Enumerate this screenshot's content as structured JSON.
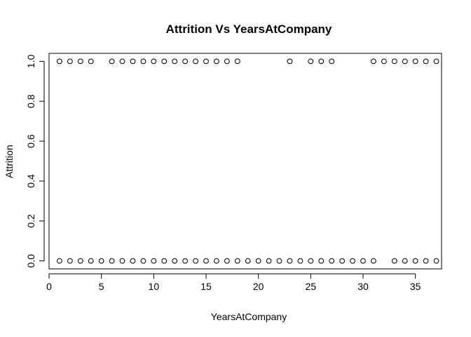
{
  "chart_data": {
    "type": "scatter",
    "title": "Attrition Vs YearsAtCompany",
    "xlabel": "YearsAtCompany",
    "ylabel": "Attrition",
    "xlim": [
      0,
      37.5
    ],
    "ylim": [
      -0.04,
      1.04
    ],
    "x_ticks": [
      0,
      5,
      10,
      15,
      20,
      25,
      30,
      35
    ],
    "y_ticks": [
      0.0,
      0.2,
      0.4,
      0.6,
      0.8,
      1.0
    ],
    "y_tick_labels": [
      "0.0",
      "0.2",
      "0.4",
      "0.6",
      "0.8",
      "1.0"
    ],
    "grid": false,
    "marker": "open-circle",
    "series": [
      {
        "points": [
          [
            1,
            1
          ],
          [
            2,
            1
          ],
          [
            3,
            1
          ],
          [
            4,
            1
          ],
          [
            6,
            1
          ],
          [
            7,
            1
          ],
          [
            8,
            1
          ],
          [
            9,
            1
          ],
          [
            10,
            1
          ],
          [
            11,
            1
          ],
          [
            12,
            1
          ],
          [
            13,
            1
          ],
          [
            14,
            1
          ],
          [
            15,
            1
          ],
          [
            16,
            1
          ],
          [
            17,
            1
          ],
          [
            18,
            1
          ],
          [
            23,
            1
          ],
          [
            25,
            1
          ],
          [
            26,
            1
          ],
          [
            27,
            1
          ],
          [
            31,
            1
          ],
          [
            32,
            1
          ],
          [
            33,
            1
          ],
          [
            34,
            1
          ],
          [
            35,
            1
          ],
          [
            36,
            1
          ],
          [
            37,
            1
          ],
          [
            1,
            0
          ],
          [
            2,
            0
          ],
          [
            3,
            0
          ],
          [
            4,
            0
          ],
          [
            5,
            0
          ],
          [
            6,
            0
          ],
          [
            7,
            0
          ],
          [
            8,
            0
          ],
          [
            9,
            0
          ],
          [
            10,
            0
          ],
          [
            11,
            0
          ],
          [
            12,
            0
          ],
          [
            13,
            0
          ],
          [
            14,
            0
          ],
          [
            15,
            0
          ],
          [
            16,
            0
          ],
          [
            17,
            0
          ],
          [
            18,
            0
          ],
          [
            19,
            0
          ],
          [
            20,
            0
          ],
          [
            21,
            0
          ],
          [
            22,
            0
          ],
          [
            23,
            0
          ],
          [
            24,
            0
          ],
          [
            25,
            0
          ],
          [
            26,
            0
          ],
          [
            27,
            0
          ],
          [
            28,
            0
          ],
          [
            29,
            0
          ],
          [
            30,
            0
          ],
          [
            31,
            0
          ],
          [
            33,
            0
          ],
          [
            34,
            0
          ],
          [
            35,
            0
          ],
          [
            36,
            0
          ],
          [
            37,
            0
          ]
        ]
      }
    ]
  }
}
